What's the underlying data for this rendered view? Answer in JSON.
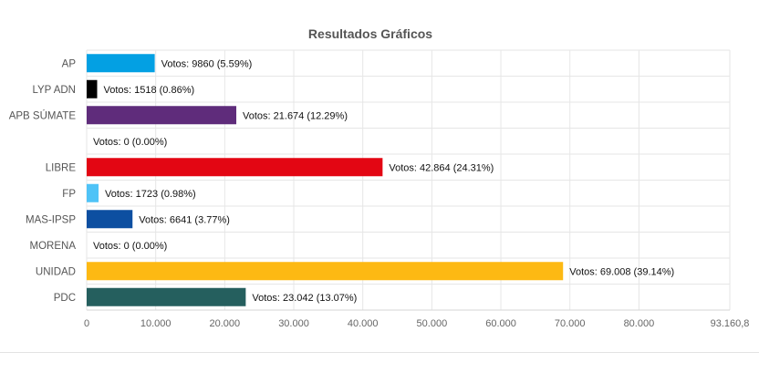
{
  "chart_data": {
    "type": "bar",
    "orientation": "horizontal",
    "title": "Resultados Gráficos",
    "categories": [
      "AP",
      "LYP ADN",
      "APB SÚMATE",
      "",
      "LIBRE",
      "FP",
      "MAS-IPSP",
      "MORENA",
      "UNIDAD",
      "PDC"
    ],
    "values": [
      9860,
      1518,
      21674,
      0,
      42864,
      1723,
      6641,
      0,
      69008,
      23042
    ],
    "data_labels": [
      "Votos: 9860 (5.59%)",
      "Votos: 1518 (0.86%)",
      "Votos: 21.674 (12.29%)",
      "Votos: 0 (0.00%)",
      "Votos: 42.864 (24.31%)",
      "Votos: 1723 (0.98%)",
      "Votos: 6641 (3.77%)",
      "Votos: 0 (0.00%)",
      "Votos: 69.008 (39.14%)",
      "Votos: 23.042 (13.07%)"
    ],
    "colors": [
      "#03a0e3",
      "#000000",
      "#5f2c7b",
      "#cccccc",
      "#e30613",
      "#4fc3f7",
      "#0d4fa1",
      "#8b1a1a",
      "#fdb913",
      "#255f5e"
    ],
    "x_ticks": [
      0,
      10000,
      20000,
      30000,
      40000,
      50000,
      60000,
      70000,
      80000,
      93160.8
    ],
    "x_tick_labels": [
      "0",
      "10.000",
      "20.000",
      "30.000",
      "40.000",
      "50.000",
      "60.000",
      "70.000",
      "80.000",
      "93.160,8"
    ],
    "xlim": [
      0,
      93160.8
    ],
    "grid": true,
    "xlabel": "",
    "ylabel": ""
  }
}
